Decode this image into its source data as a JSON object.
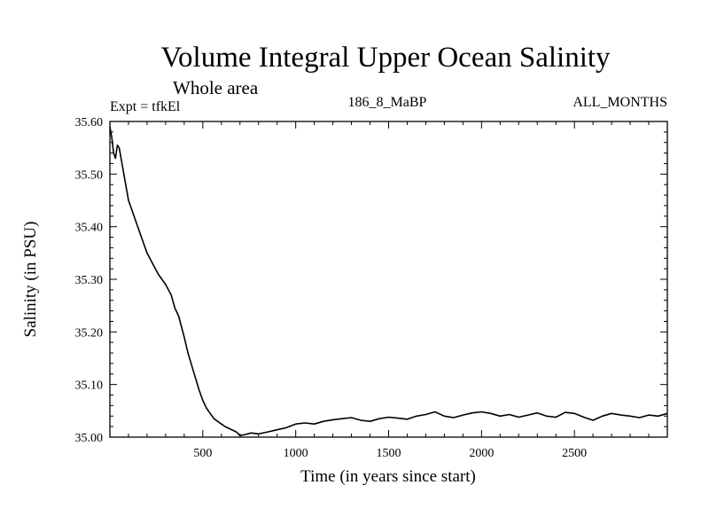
{
  "chart_data": {
    "type": "line",
    "title": "Volume Integral Upper Ocean Salinity",
    "subtitle": "Whole area",
    "experiment": "Expt = tfkEl",
    "run_id": "186_8_MaBP",
    "months": "ALL_MONTHS",
    "xlabel": "Time (in years since start)",
    "ylabel": "Salinity (in PSU)",
    "xlim": [
      0,
      3000
    ],
    "ylim": [
      35.0,
      35.6
    ],
    "xticks": [
      500,
      1000,
      1500,
      2000,
      2500
    ],
    "xtick_labels": [
      "500",
      "1000",
      "1500",
      "2000",
      "2500"
    ],
    "yticks": [
      35.0,
      35.1,
      35.2,
      35.3,
      35.4,
      35.5,
      35.6
    ],
    "ytick_labels": [
      "35.00",
      "35.10",
      "35.20",
      "35.30",
      "35.40",
      "35.50",
      "35.60"
    ],
    "grid": false,
    "line_color": "#000000",
    "series": [
      {
        "x": [
          0,
          10,
          20,
          30,
          40,
          50,
          60,
          70,
          80,
          100,
          120,
          150,
          180,
          200,
          230,
          260,
          280,
          300,
          330,
          350,
          370,
          400,
          420,
          450,
          480,
          500,
          520,
          540,
          560,
          580,
          600,
          620,
          650,
          680,
          700,
          730,
          760,
          800,
          850,
          900,
          950,
          1000,
          1050,
          1100,
          1150,
          1200,
          1250,
          1300,
          1350,
          1400,
          1450,
          1500,
          1550,
          1600,
          1650,
          1700,
          1750,
          1800,
          1850,
          1900,
          1950,
          2000,
          2050,
          2100,
          2150,
          2200,
          2250,
          2300,
          2350,
          2400,
          2450,
          2500,
          2550,
          2600,
          2650,
          2700,
          2750,
          2800,
          2850,
          2900,
          2950,
          3000
        ],
        "y": [
          35.59,
          35.57,
          35.54,
          35.53,
          35.555,
          35.55,
          35.53,
          35.51,
          35.49,
          35.45,
          35.43,
          35.4,
          35.37,
          35.35,
          35.33,
          35.31,
          35.3,
          35.29,
          35.27,
          35.245,
          35.23,
          35.19,
          35.16,
          35.125,
          35.09,
          35.07,
          35.055,
          35.045,
          35.035,
          35.03,
          35.025,
          35.02,
          35.015,
          35.01,
          35.003,
          35.005,
          35.008,
          35.006,
          35.01,
          35.014,
          35.018,
          35.025,
          35.027,
          35.025,
          35.03,
          35.033,
          35.035,
          35.037,
          35.032,
          35.03,
          35.035,
          35.038,
          35.036,
          35.034,
          35.04,
          35.043,
          35.048,
          35.04,
          35.037,
          35.042,
          35.046,
          35.048,
          35.045,
          35.04,
          35.043,
          35.038,
          35.042,
          35.046,
          35.04,
          35.038,
          35.047,
          35.045,
          35.038,
          35.032,
          35.04,
          35.045,
          35.042,
          35.04,
          35.037,
          35.042,
          35.04,
          35.045
        ]
      }
    ]
  }
}
